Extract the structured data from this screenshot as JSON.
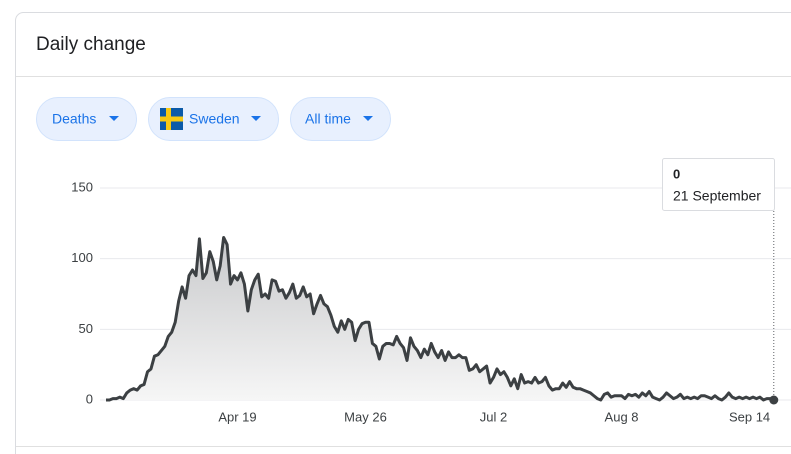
{
  "header": {
    "title": "Daily change"
  },
  "controls": {
    "metric": "Deaths",
    "country": "Sweden",
    "period": "All time"
  },
  "chart_data": {
    "type": "area",
    "categories": [
      null,
      null,
      null,
      null,
      null,
      null,
      null,
      null,
      null,
      null,
      null,
      null,
      null,
      null,
      null,
      null,
      null,
      null,
      null,
      null,
      null,
      null,
      null,
      null,
      null,
      null,
      null,
      null,
      null,
      null,
      null,
      null,
      null,
      null,
      null,
      null,
      null,
      null,
      "Apr 19",
      null,
      null,
      null,
      null,
      null,
      null,
      null,
      null,
      null,
      null,
      null,
      null,
      null,
      null,
      null,
      null,
      null,
      null,
      null,
      null,
      null,
      null,
      null,
      null,
      null,
      null,
      null,
      null,
      null,
      null,
      null,
      null,
      null,
      null,
      null,
      null,
      "May 26",
      null,
      null,
      null,
      null,
      null,
      null,
      null,
      null,
      null,
      null,
      null,
      null,
      null,
      null,
      null,
      null,
      null,
      null,
      null,
      null,
      null,
      null,
      null,
      null,
      null,
      null,
      null,
      null,
      null,
      null,
      null,
      null,
      null,
      null,
      null,
      null,
      "Jul 2",
      null,
      null,
      null,
      null,
      null,
      null,
      null,
      null,
      null,
      null,
      null,
      null,
      null,
      null,
      null,
      null,
      null,
      null,
      null,
      null,
      null,
      null,
      null,
      null,
      null,
      null,
      null,
      null,
      null,
      null,
      null,
      null,
      null,
      null,
      null,
      null,
      "Aug 8",
      null,
      null,
      null,
      null,
      null,
      null,
      null,
      null,
      null,
      null,
      null,
      null,
      null,
      null,
      null,
      null,
      null,
      null,
      null,
      null,
      null,
      null,
      null,
      null,
      null,
      null,
      null,
      null,
      null,
      null,
      null,
      null,
      null,
      null,
      null,
      null,
      "Sep 14",
      null,
      null,
      null,
      null,
      null,
      null,
      null
    ],
    "values": [
      0,
      0,
      1,
      1,
      2,
      1,
      5,
      7,
      8,
      7,
      10,
      11,
      20,
      22,
      31,
      32,
      35,
      38,
      45,
      48,
      55,
      70,
      80,
      72,
      88,
      92,
      88,
      114,
      86,
      90,
      105,
      98,
      85,
      95,
      115,
      110,
      82,
      88,
      85,
      90,
      82,
      63,
      78,
      85,
      89,
      73,
      75,
      72,
      85,
      84,
      77,
      78,
      72,
      76,
      82,
      72,
      74,
      80,
      73,
      75,
      61,
      68,
      74,
      68,
      66,
      60,
      52,
      48,
      56,
      50,
      57,
      55,
      42,
      50,
      54,
      55,
      55,
      40,
      38,
      29,
      38,
      40,
      40,
      39,
      45,
      40,
      37,
      28,
      44,
      38,
      35,
      30,
      36,
      32,
      40,
      34,
      30,
      35,
      28,
      34,
      30,
      30,
      32,
      30,
      30,
      21,
      22,
      25,
      20,
      22,
      24,
      12,
      16,
      22,
      18,
      20,
      16,
      10,
      15,
      8,
      18,
      12,
      13,
      12,
      16,
      12,
      13,
      16,
      10,
      7,
      8,
      8,
      12,
      9,
      13,
      9,
      8,
      8,
      7,
      6,
      5,
      3,
      1,
      0,
      4,
      5,
      2,
      3,
      3,
      3,
      1,
      4,
      3,
      4,
      2,
      5,
      3,
      6,
      2,
      1,
      0,
      2,
      5,
      3,
      1,
      2,
      4,
      1,
      2,
      1,
      2,
      1,
      3,
      3,
      2,
      1,
      3,
      1,
      0,
      2,
      5,
      2,
      1,
      2,
      1,
      2,
      1,
      2,
      1,
      2,
      0,
      1,
      1,
      0
    ],
    "color": "#3c4043",
    "ylim": [
      0,
      150
    ],
    "yticks": [
      0,
      50,
      100,
      150
    ],
    "grid": true,
    "tooltip": {
      "value": 0,
      "date": "21 September"
    }
  }
}
